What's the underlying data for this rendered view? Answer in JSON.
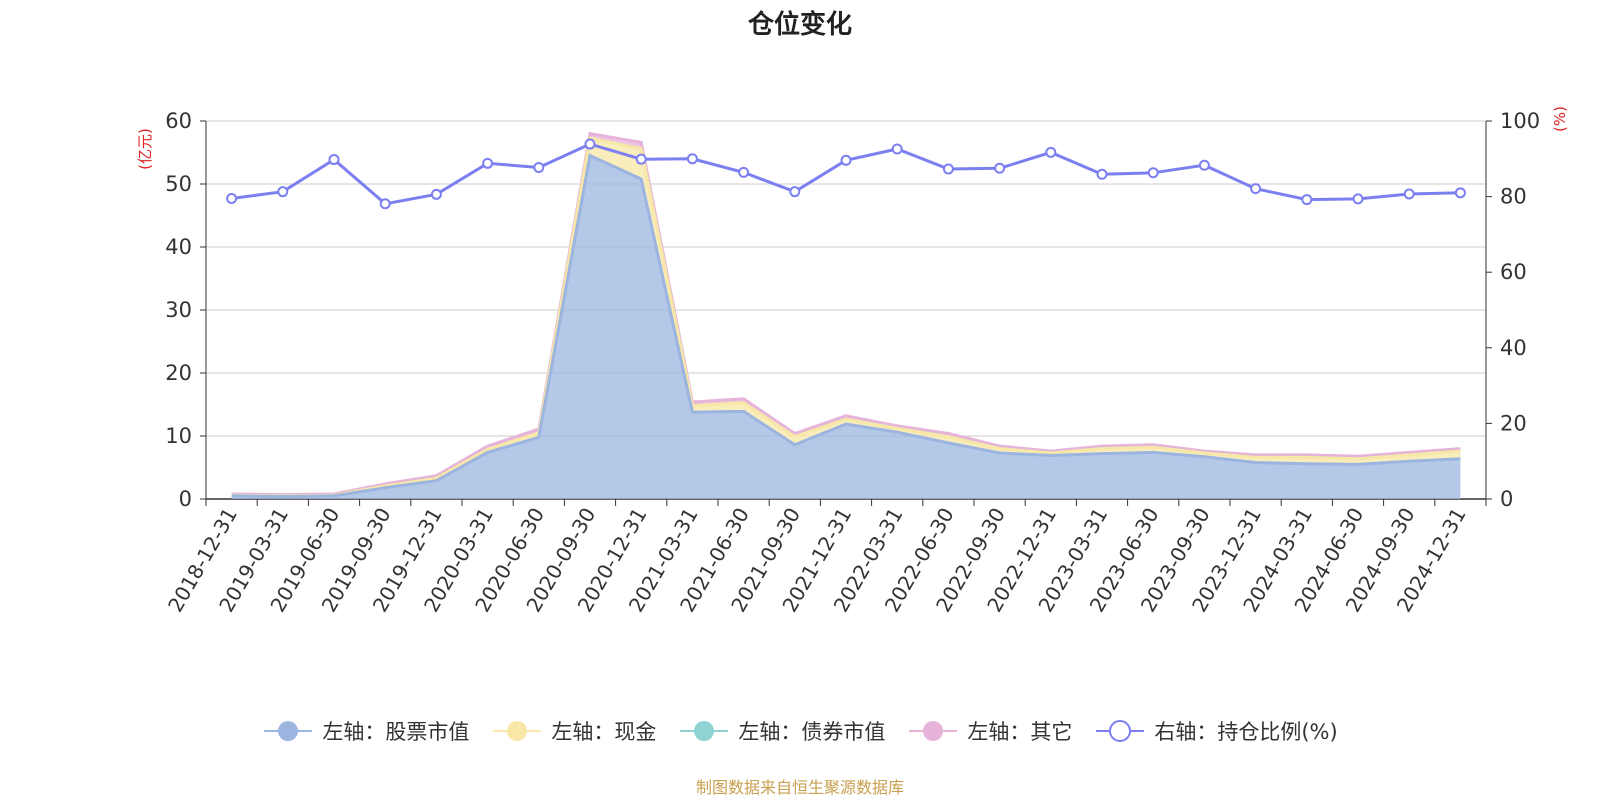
{
  "chart_data": {
    "type": "area",
    "title": "仓位变化",
    "left_axis_unit": "(亿元)",
    "right_axis_unit": "(%)",
    "left_ylim": [
      0,
      60
    ],
    "left_yticks": [
      0,
      10,
      20,
      30,
      40,
      50,
      60
    ],
    "right_ylim": [
      0,
      100
    ],
    "right_yticks": [
      0,
      20,
      40,
      60,
      80,
      100
    ],
    "grid": true,
    "legend_position": "bottom",
    "categories": [
      "2018-12-31",
      "2019-03-31",
      "2019-06-30",
      "2019-09-30",
      "2019-12-31",
      "2020-03-31",
      "2020-06-30",
      "2020-09-30",
      "2020-12-31",
      "2021-03-31",
      "2021-06-30",
      "2021-09-30",
      "2021-12-31",
      "2022-03-31",
      "2022-06-30",
      "2022-09-30",
      "2022-12-31",
      "2023-03-31",
      "2023-06-30",
      "2023-09-30",
      "2023-12-31",
      "2024-03-31",
      "2024-06-30",
      "2024-09-30",
      "2024-12-31"
    ],
    "series": [
      {
        "name": "左轴：股票市值",
        "axis": "left",
        "kind": "area",
        "color": "#9bb5e0",
        "values": [
          0.5,
          0.4,
          0.5,
          1.8,
          2.9,
          7.4,
          9.8,
          54.5,
          50.8,
          13.8,
          13.9,
          8.6,
          11.9,
          10.6,
          8.9,
          7.3,
          6.9,
          7.2,
          7.4,
          6.7,
          5.8,
          5.6,
          5.5,
          6.0,
          6.4
        ]
      },
      {
        "name": "左轴：现金",
        "axis": "left",
        "kind": "area",
        "color": "#f8e7a6",
        "values": [
          0.1,
          0.1,
          0.1,
          0.3,
          0.4,
          0.5,
          0.7,
          2.8,
          4.8,
          1.0,
          1.4,
          1.3,
          0.8,
          0.6,
          1.0,
          0.7,
          0.4,
          0.8,
          0.8,
          0.6,
          0.8,
          1.0,
          0.9,
          1.0,
          1.2
        ]
      },
      {
        "name": "左轴：债券市值",
        "axis": "left",
        "kind": "area",
        "color": "#90d3d2",
        "values": [
          0,
          0,
          0,
          0,
          0,
          0,
          0,
          0,
          0,
          0,
          0,
          0,
          0,
          0,
          0,
          0,
          0,
          0,
          0,
          0,
          0,
          0,
          0,
          0,
          0
        ]
      },
      {
        "name": "左轴：其它",
        "axis": "left",
        "kind": "area",
        "color": "#e7b3da",
        "values": [
          0.2,
          0.2,
          0.2,
          0.3,
          0.4,
          0.5,
          0.6,
          0.7,
          1.0,
          0.6,
          0.6,
          0.5,
          0.5,
          0.4,
          0.5,
          0.4,
          0.3,
          0.4,
          0.4,
          0.3,
          0.4,
          0.4,
          0.4,
          0.4,
          0.4
        ]
      },
      {
        "name": "右轴：持仓比例(%)",
        "axis": "right",
        "kind": "line",
        "color": "#7c7ff0",
        "values": [
          79.5,
          81.3,
          89.8,
          78.1,
          80.6,
          88.8,
          87.7,
          93.9,
          89.9,
          90.0,
          86.4,
          81.3,
          89.6,
          92.6,
          87.3,
          87.5,
          91.7,
          85.9,
          86.3,
          88.3,
          82.1,
          79.2,
          79.4,
          80.7,
          81.0
        ]
      }
    ]
  },
  "source_note": "制图数据来自恒生聚源数据库"
}
